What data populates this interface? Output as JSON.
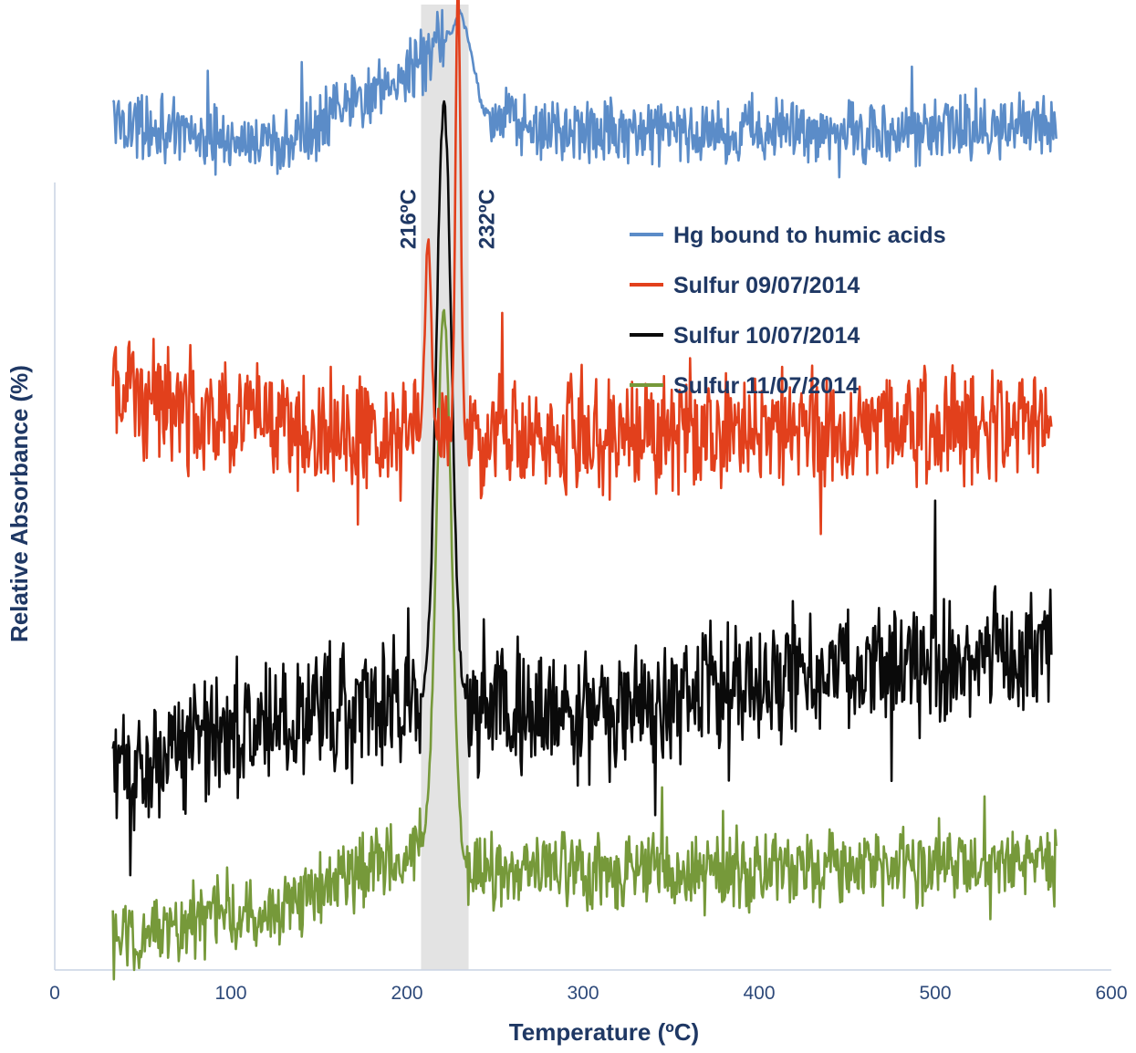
{
  "chart_data": {
    "type": "line",
    "title": "",
    "xlabel": "Temperature (ºC)",
    "ylabel": "Relative Absorbance (%)",
    "xlim": [
      0,
      600
    ],
    "xticks": [
      0,
      100,
      200,
      300,
      400,
      500,
      600
    ],
    "y_ticks_shown": false,
    "grid": false,
    "legend_position": "top-right",
    "highlight_band": {
      "from": 208,
      "to": 235,
      "color": "#e3e3e3"
    },
    "annotations": [
      {
        "text": "216ºC",
        "x": 216
      },
      {
        "text": "232ºC",
        "x": 232
      }
    ],
    "series": [
      {
        "name": "Hg bound to humic acids",
        "color": "#5b8cc8",
        "x_range": [
          33,
          569
        ],
        "baseline": 88,
        "noise": 5,
        "trend": [
          [
            33,
            88
          ],
          [
            120,
            85
          ],
          [
            165,
            89
          ],
          [
            200,
            93
          ],
          [
            220,
            96
          ],
          [
            230,
            98
          ],
          [
            243,
            89
          ],
          [
            265,
            87
          ],
          [
            569,
            87
          ]
        ],
        "peaks": [
          {
            "x": 234,
            "height": 2,
            "width": 6
          }
        ]
      },
      {
        "name": "Sulfur 09/07/2014",
        "color": "#e2401c",
        "x_range": [
          33,
          566
        ],
        "baseline": 57,
        "noise": 9,
        "trend": [
          [
            33,
            60
          ],
          [
            100,
            57
          ],
          [
            205,
            55
          ],
          [
            400,
            56
          ],
          [
            566,
            57
          ]
        ],
        "peaks": [
          {
            "x": 212,
            "height": 20,
            "width": 2.5
          },
          {
            "x": 229,
            "height": 48,
            "width": 2
          }
        ]
      },
      {
        "name": "Sulfur 10/07/2014",
        "color": "#0a0a0a",
        "x_range": [
          33,
          566
        ],
        "baseline": 26,
        "noise": 10,
        "trend": [
          [
            33,
            20
          ],
          [
            100,
            25
          ],
          [
            205,
            28
          ],
          [
            300,
            26
          ],
          [
            400,
            30
          ],
          [
            566,
            33
          ]
        ],
        "peaks": [
          {
            "x": 221,
            "height": 62,
            "width": 6
          }
        ]
      },
      {
        "name": "Sulfur 11/07/2014",
        "color": "#76993a",
        "x_range": [
          33,
          569
        ],
        "baseline": 8,
        "noise": 6,
        "trend": [
          [
            33,
            3
          ],
          [
            100,
            6
          ],
          [
            150,
            8
          ],
          [
            205,
            13
          ],
          [
            235,
            10
          ],
          [
            300,
            10
          ],
          [
            569,
            11
          ]
        ],
        "peaks": [
          {
            "x": 221,
            "height": 57,
            "width": 6
          }
        ]
      }
    ]
  }
}
